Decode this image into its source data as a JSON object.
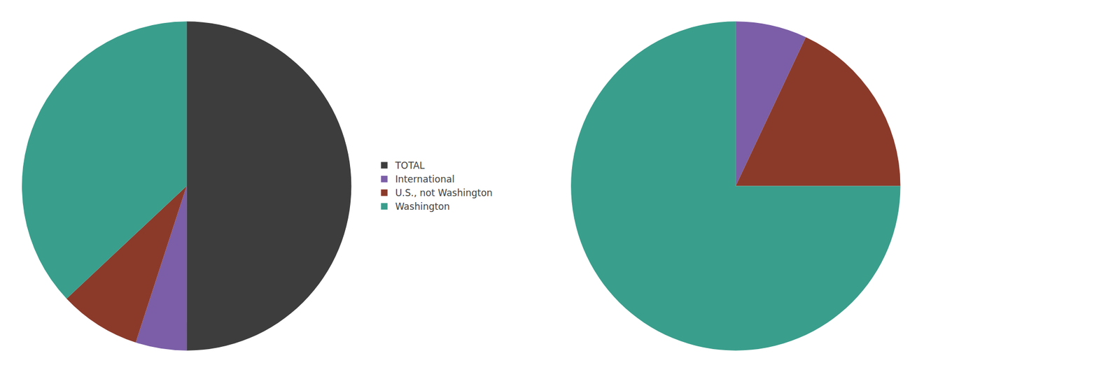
{
  "chart_data": [
    {
      "type": "pie",
      "categories": [
        "TOTAL",
        "International",
        "U.S., not Washington",
        "Washington"
      ],
      "values": [
        50.0,
        5.0,
        8.0,
        37.0
      ],
      "colors": [
        "#3d3d3d",
        "#7b5ea7",
        "#8b3a2a",
        "#3a9e8c"
      ],
      "legend": "right"
    },
    {
      "type": "pie",
      "categories": [
        "International",
        "U.S., not Washington",
        "Washington"
      ],
      "values": [
        7.0,
        18.0,
        75.0
      ],
      "colors": [
        "#7b5ea7",
        "#8b3a2a",
        "#3a9e8c"
      ],
      "legend": "right"
    }
  ]
}
